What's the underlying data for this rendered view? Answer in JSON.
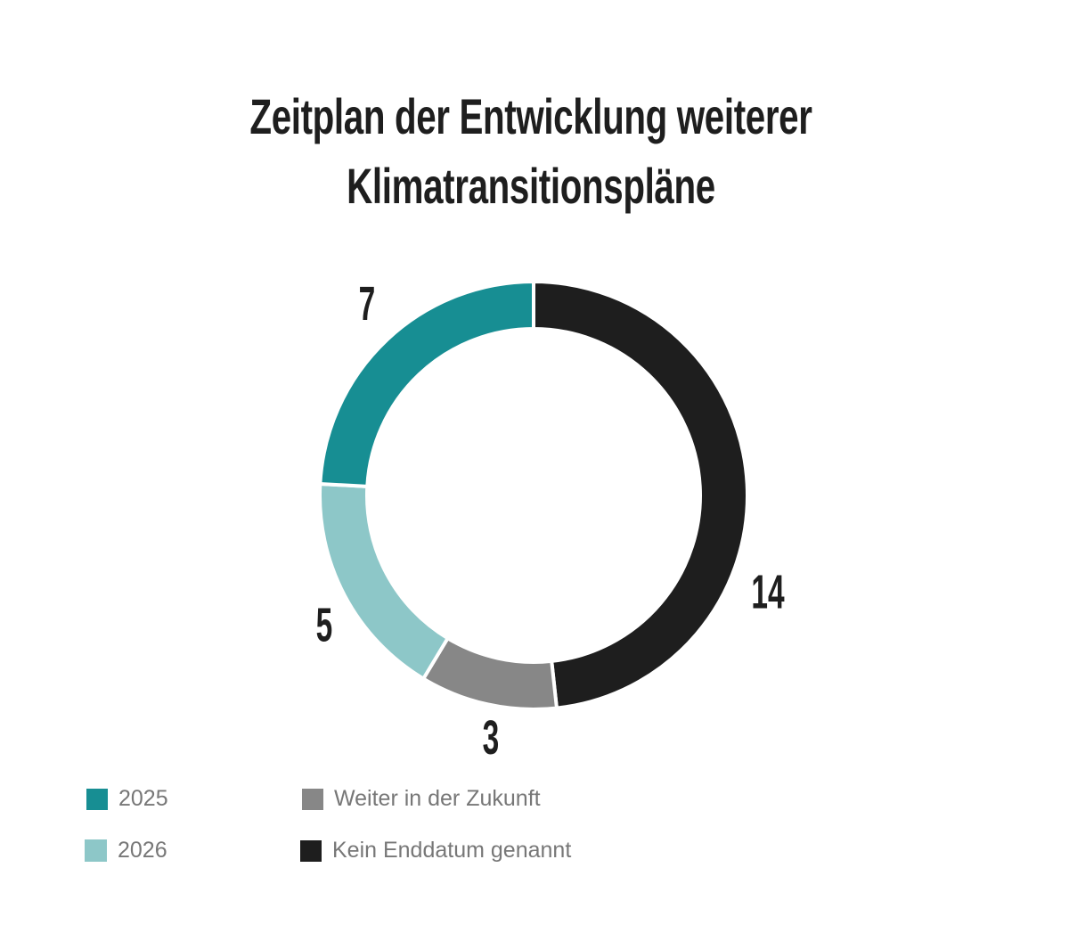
{
  "chart_data": {
    "type": "pie",
    "subtype": "donut",
    "title_lines": [
      "Zeitplan der Entwicklung weiterer",
      "Klimatransitionspläne"
    ],
    "start": "top",
    "direction": "clockwise",
    "slices": [
      {
        "label": "Kein Enddatum genannt",
        "value": 14,
        "value_label": "14",
        "color": "#1e1e1e"
      },
      {
        "label": "Weiter in der Zukunft",
        "value": 3,
        "value_label": "3",
        "color": "#878787"
      },
      {
        "label": "2026",
        "value": 5,
        "value_label": "5",
        "color": "#8dc7c8"
      },
      {
        "label": "2025",
        "value": 7,
        "value_label": "7",
        "color": "#178e93"
      }
    ],
    "legend": [
      {
        "label": "2025",
        "color": "#178e93"
      },
      {
        "label": "2026",
        "color": "#8dc7c8"
      },
      {
        "label": "Weiter in der Zukunft",
        "color": "#878787"
      },
      {
        "label": "Kein Enddatum genannt",
        "color": "#1e1e1e"
      }
    ],
    "legend_position": "bottom-left"
  }
}
